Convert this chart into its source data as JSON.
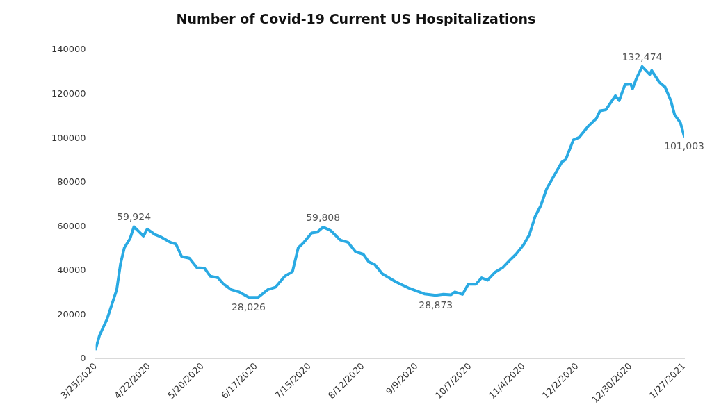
{
  "chart_data": {
    "type": "line",
    "title": "Number of Covid-19 Current US Hospitalizations",
    "x": [
      "2020-03-25",
      "2020-03-27",
      "2020-03-31",
      "2020-04-05",
      "2020-04-07",
      "2020-04-09",
      "2020-04-12",
      "2020-04-14",
      "2020-04-19",
      "2020-04-21",
      "2020-04-25",
      "2020-04-28",
      "2020-05-03",
      "2020-05-06",
      "2020-05-09",
      "2020-05-13",
      "2020-05-17",
      "2020-05-21",
      "2020-05-24",
      "2020-05-28",
      "2020-05-31",
      "2020-06-04",
      "2020-06-08",
      "2020-06-13",
      "2020-06-18",
      "2020-06-23",
      "2020-06-27",
      "2020-07-02",
      "2020-07-06",
      "2020-07-09",
      "2020-07-12",
      "2020-07-16",
      "2020-07-19",
      "2020-07-22",
      "2020-07-26",
      "2020-07-31",
      "2020-08-04",
      "2020-08-08",
      "2020-08-12",
      "2020-08-15",
      "2020-08-18",
      "2020-08-22",
      "2020-08-29",
      "2020-09-05",
      "2020-09-13",
      "2020-09-19",
      "2020-09-23",
      "2020-09-27",
      "2020-09-29",
      "2020-10-03",
      "2020-10-06",
      "2020-10-10",
      "2020-10-13",
      "2020-10-16",
      "2020-10-20",
      "2020-10-24",
      "2020-10-28",
      "2020-10-31",
      "2020-11-04",
      "2020-11-07",
      "2020-11-10",
      "2020-11-13",
      "2020-11-16",
      "2020-11-20",
      "2020-11-24",
      "2020-11-26",
      "2020-11-30",
      "2020-12-03",
      "2020-12-08",
      "2020-12-12",
      "2020-12-14",
      "2020-12-17",
      "2020-12-22",
      "2020-12-24",
      "2020-12-27",
      "2020-12-30",
      "2020-12-31",
      "2021-01-02",
      "2021-01-05",
      "2021-01-09",
      "2021-01-10",
      "2021-01-14",
      "2021-01-17",
      "2021-01-20",
      "2021-01-22",
      "2021-01-25",
      "2021-01-27"
    ],
    "series": [
      {
        "color": "#2aaae3",
        "values": [
          4600,
          10700,
          18200,
          31400,
          43200,
          50400,
          54600,
          59924,
          55700,
          58900,
          56400,
          55400,
          52900,
          52100,
          46400,
          45700,
          41400,
          41100,
          37500,
          36800,
          33900,
          31400,
          30400,
          28026,
          27900,
          31400,
          32500,
          37500,
          39600,
          50400,
          52900,
          57100,
          57500,
          59808,
          58200,
          53900,
          52900,
          48600,
          47500,
          43900,
          42900,
          38600,
          35000,
          32100,
          29500,
          28873,
          29300,
          29100,
          30400,
          29300,
          33900,
          33900,
          36800,
          35700,
          39300,
          41400,
          45000,
          47500,
          51800,
          56400,
          64600,
          69600,
          77100,
          83200,
          89300,
          90400,
          99300,
          100400,
          105700,
          108900,
          112500,
          112900,
          119300,
          117100,
          124300,
          124600,
          122500,
          127100,
          132474,
          128900,
          130700,
          125400,
          123200,
          117100,
          110700,
          107100,
          101003
        ]
      }
    ],
    "xlim": [
      "2020-03-25",
      "2021-01-27"
    ],
    "xticks": [
      {
        "value": "2020-03-25",
        "label": "3/25/2020"
      },
      {
        "value": "2020-04-22",
        "label": "4/22/2020"
      },
      {
        "value": "2020-05-20",
        "label": "5/20/2020"
      },
      {
        "value": "2020-06-17",
        "label": "6/17/2020"
      },
      {
        "value": "2020-07-15",
        "label": "7/15/2020"
      },
      {
        "value": "2020-08-12",
        "label": "8/12/2020"
      },
      {
        "value": "2020-09-09",
        "label": "9/9/2020"
      },
      {
        "value": "2020-10-07",
        "label": "10/7/2020"
      },
      {
        "value": "2020-11-04",
        "label": "11/4/2020"
      },
      {
        "value": "2020-12-02",
        "label": "12/2/2020"
      },
      {
        "value": "2020-12-30",
        "label": "12/30/2020"
      },
      {
        "value": "2021-01-27",
        "label": "1/27/2021"
      }
    ],
    "ylim": [
      0,
      140000
    ],
    "yticks": [
      0,
      20000,
      40000,
      60000,
      80000,
      100000,
      120000,
      140000
    ],
    "annotations": [
      {
        "text": "59,924",
        "x": "2020-04-14",
        "y": 59924
      },
      {
        "text": "28,026",
        "x": "2020-06-13",
        "y": 28026
      },
      {
        "text": "59,808",
        "x": "2020-07-22",
        "y": 59808
      },
      {
        "text": "28,873",
        "x": "2020-09-19",
        "y": 28873
      },
      {
        "text": "132,474",
        "x": "2021-01-05",
        "y": 132474
      },
      {
        "text": "101,003",
        "x": "2021-01-27",
        "y": 101003
      }
    ],
    "grid": false,
    "legend": false,
    "marker": "none",
    "line_style": "solid"
  }
}
